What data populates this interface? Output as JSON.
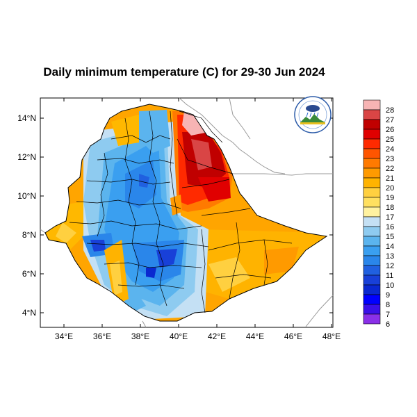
{
  "title": "Daily minimum temperature (C) for 29-30 Jun 2024",
  "lat_ticks": [
    "14°N",
    "12°N",
    "10°N",
    "8°N",
    "6°N",
    "4°N"
  ],
  "lon_ticks": [
    "34°E",
    "36°E",
    "38°E",
    "40°E",
    "42°E",
    "44°E",
    "46°E",
    "48°E"
  ],
  "colorbar": {
    "labels": [
      "28",
      "27",
      "26",
      "25",
      "24",
      "23",
      "22",
      "21",
      "20",
      "19",
      "18",
      "17",
      "16",
      "15",
      "14",
      "13",
      "12",
      "11",
      "10",
      "9",
      "8",
      "7",
      "6"
    ],
    "colors": [
      "#f7b4b4",
      "#d94545",
      "#c00000",
      "#e00000",
      "#ff2a00",
      "#ff5500",
      "#ff7a00",
      "#ff9a00",
      "#ffb300",
      "#ffd040",
      "#ffe060",
      "#fff2a0",
      "#c4e0f4",
      "#8ecbf0",
      "#5bb4ee",
      "#3a9ff0",
      "#2a86ea",
      "#2060e0",
      "#1840d8",
      "#0a28d0",
      "#0000ff",
      "#3a10e8",
      "#8a30e8"
    ]
  },
  "logo": {
    "name": "ethiopian-meteorology-institute-logo"
  }
}
